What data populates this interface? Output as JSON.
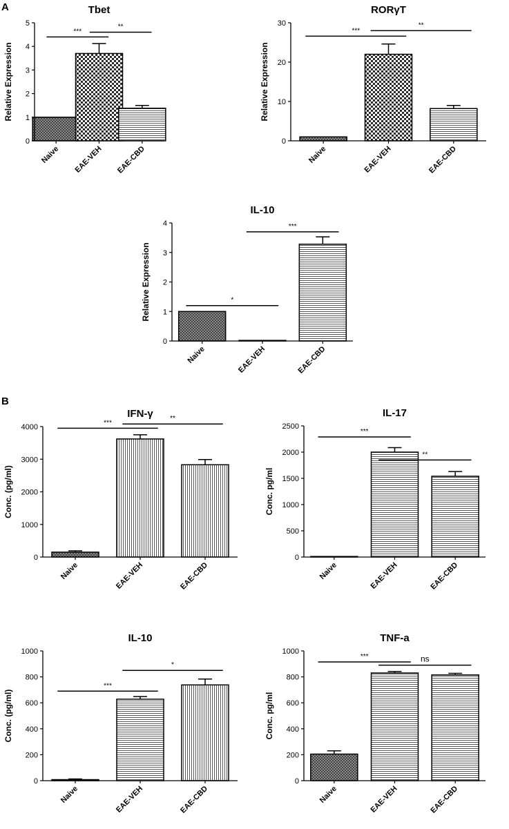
{
  "panels": {
    "a": "A",
    "b": "B"
  },
  "colors": {
    "axis": "#000000",
    "bar_stroke": "#000000",
    "error_bar": "#000000",
    "bar_fill_light": "#ffffff",
    "bar_fill_dark": "#2b2b2b"
  },
  "chart_data": [
    {
      "type": "bar",
      "title": "Tbet",
      "ylabel": "Relative Expression",
      "xlabel": "",
      "categories": [
        "Naive",
        "EAE-VEH",
        "EAE-CBD"
      ],
      "values": [
        1.0,
        3.7,
        1.38
      ],
      "errors": [
        0.0,
        0.42,
        0.12
      ],
      "patterns": [
        "crosshatch",
        "checker",
        "hlines"
      ],
      "ylim": [
        0,
        5
      ],
      "yticks": [
        0,
        1,
        2,
        3,
        4,
        5
      ],
      "ytick_labels": [
        "0",
        "1",
        "2",
        "3",
        "4",
        "5"
      ],
      "significance": [
        {
          "from": 0,
          "to": 1,
          "label": "***",
          "y": 4.4
        },
        {
          "from": 1,
          "to": 2,
          "label": "**",
          "y": 4.6
        }
      ]
    },
    {
      "type": "bar",
      "title": "RORγT",
      "ylabel": "Relative Expression",
      "xlabel": "",
      "categories": [
        "Naive",
        "EAE-VEH",
        "EAE-CBD"
      ],
      "values": [
        1.0,
        22.0,
        8.2
      ],
      "errors": [
        0.0,
        2.6,
        0.8
      ],
      "patterns": [
        "crosshatch",
        "checker",
        "hlines"
      ],
      "ylim": [
        0,
        30
      ],
      "yticks": [
        0,
        10,
        20,
        30
      ],
      "ytick_labels": [
        "0",
        "10",
        "20",
        "30"
      ],
      "significance": [
        {
          "from": 0,
          "to": 1,
          "label": "***",
          "y": 26.6
        },
        {
          "from": 1,
          "to": 2,
          "label": "**",
          "y": 28.0
        }
      ]
    },
    {
      "type": "bar",
      "title": "IL-10",
      "ylabel": "Relative Expression",
      "xlabel": "",
      "categories": [
        "Naive",
        "EAE-VEH",
        "EAE-CBD"
      ],
      "values": [
        1.0,
        0.02,
        3.28
      ],
      "errors": [
        0.0,
        0.0,
        0.25
      ],
      "patterns": [
        "crosshatch",
        "hlines",
        "hlines"
      ],
      "ylim": [
        0,
        4
      ],
      "yticks": [
        0,
        1,
        2,
        3,
        4
      ],
      "ytick_labels": [
        "0",
        "1",
        "2",
        "3",
        "4"
      ],
      "significance": [
        {
          "from": 0,
          "to": 1,
          "label": "*",
          "y": 1.2
        },
        {
          "from": 1,
          "to": 2,
          "label": "***",
          "y": 3.7
        }
      ]
    },
    {
      "type": "bar",
      "title": "IFN-γ",
      "ylabel": "Conc. (pg/ml)",
      "xlabel": "",
      "categories": [
        "Naive",
        "EAE-VEH",
        "EAE-CBD"
      ],
      "values": [
        150,
        3620,
        2830
      ],
      "errors": [
        40,
        130,
        160
      ],
      "patterns": [
        "crosshatch",
        "vlines",
        "vlines"
      ],
      "ylim": [
        0,
        4000
      ],
      "yticks": [
        0,
        1000,
        2000,
        3000,
        4000
      ],
      "ytick_labels": [
        "0",
        "1000",
        "2000",
        "3000",
        "4000"
      ],
      "significance": [
        {
          "from": 0,
          "to": 1,
          "label": "***",
          "y": 3950
        },
        {
          "from": 1,
          "to": 2,
          "label": "**",
          "y": 4080
        }
      ]
    },
    {
      "type": "bar",
      "title": "IL-17",
      "ylabel": "Conc. pg/ml",
      "xlabel": "",
      "categories": [
        "Naive",
        "EAE-VEH",
        "EAE-CBD"
      ],
      "values": [
        0,
        2000,
        1540
      ],
      "errors": [
        0,
        85,
        90
      ],
      "patterns": [
        "crosshatch",
        "hlines",
        "hlines"
      ],
      "ylim": [
        0,
        2500
      ],
      "yticks": [
        0,
        500,
        1000,
        1500,
        2000,
        2500
      ],
      "ytick_labels": [
        "0",
        "500",
        "1000",
        "1500",
        "2000",
        "2500"
      ],
      "significance": [
        {
          "from": 0,
          "to": 1,
          "label": "***",
          "y": 2290
        },
        {
          "from": 1,
          "to": 2,
          "label": "**",
          "y": 1850
        }
      ]
    },
    {
      "type": "bar",
      "title": "IL-10",
      "ylabel": "Conc. (pg/ml)",
      "xlabel": "",
      "categories": [
        "Naive",
        "EAE-VEH",
        "EAE-CBD"
      ],
      "values": [
        8,
        628,
        738
      ],
      "errors": [
        5,
        20,
        45
      ],
      "patterns": [
        "crosshatch",
        "hlines",
        "vlines"
      ],
      "ylim": [
        0,
        1000
      ],
      "yticks": [
        0,
        200,
        400,
        600,
        800,
        1000
      ],
      "ytick_labels": [
        "0",
        "200",
        "400",
        "600",
        "800",
        "1000"
      ],
      "significance": [
        {
          "from": 0,
          "to": 1,
          "label": "***",
          "y": 690
        },
        {
          "from": 1,
          "to": 2,
          "label": "*",
          "y": 850
        }
      ]
    },
    {
      "type": "bar",
      "title": "TNF-a",
      "ylabel": "Conc. pg/ml",
      "xlabel": "",
      "categories": [
        "Naive",
        "EAE-VEH",
        "EAE-CBD"
      ],
      "values": [
        205,
        830,
        815
      ],
      "errors": [
        25,
        12,
        12
      ],
      "patterns": [
        "crosshatch",
        "hlines",
        "hlines"
      ],
      "ylim": [
        0,
        1000
      ],
      "yticks": [
        0,
        200,
        400,
        600,
        800,
        1000
      ],
      "ytick_labels": [
        "0",
        "200",
        "400",
        "600",
        "800",
        "1000"
      ],
      "significance": [
        {
          "from": 0,
          "to": 1,
          "label": "***",
          "y": 915
        },
        {
          "from": 1,
          "to": 2,
          "label": "ns",
          "y": 890
        }
      ]
    }
  ]
}
